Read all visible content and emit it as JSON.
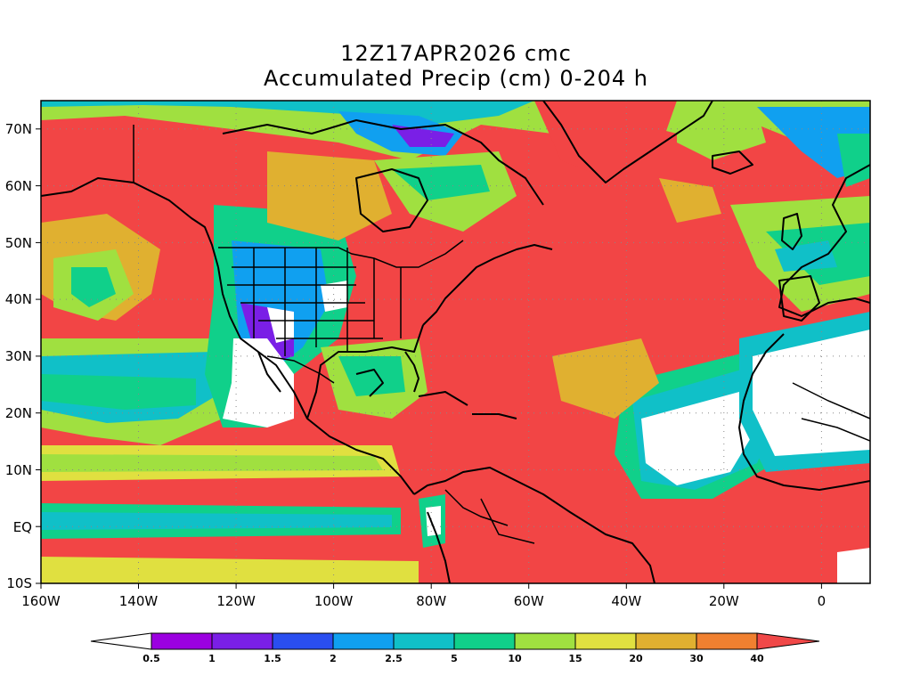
{
  "title": {
    "line1": "12Z17APR2026 cmc",
    "line2": "Accumulated Precip (cm) 0-204 h"
  },
  "axes": {
    "lon_labels": [
      "160W",
      "140W",
      "120W",
      "100W",
      "80W",
      "60W",
      "40W",
      "20W",
      "0"
    ],
    "lat_labels": [
      "70N",
      "60N",
      "50N",
      "40N",
      "30N",
      "20N",
      "10N",
      "EQ",
      "10S"
    ],
    "lon_range": [
      -160,
      10
    ],
    "lat_range": [
      -10,
      75
    ]
  },
  "colorbar": {
    "labels": [
      "0.5",
      "1",
      "1.5",
      "2",
      "2.5",
      "5",
      "10",
      "15",
      "20",
      "30",
      "40"
    ],
    "colors": [
      "#ffffff",
      "#9b00e0",
      "#7a1fe6",
      "#2a4ef0",
      "#10a0f0",
      "#10c0c8",
      "#10d08a",
      "#a0e040",
      "#e0e040",
      "#e0b030",
      "#f08030",
      "#f04848"
    ]
  },
  "map": {
    "grid": "dotted",
    "colors": {
      "heavy": "#f24545",
      "orange": "#f08030",
      "amber": "#e0b030",
      "yellow": "#e0e040",
      "lime": "#a0e040",
      "green": "#10d08a",
      "teal": "#10c0c8",
      "sky": "#10a0f0",
      "blue": "#2a4ef0",
      "violet": "#7a1fe6",
      "purple": "#9b00e0",
      "dry": "#ffffff"
    }
  }
}
